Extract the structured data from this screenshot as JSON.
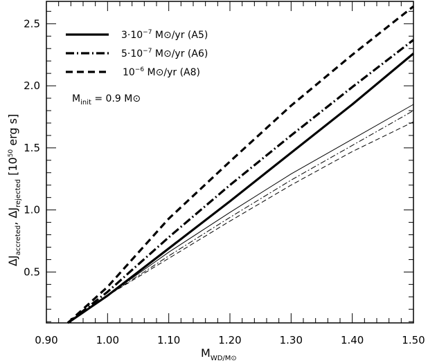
{
  "chart_data": {
    "type": "line",
    "xlabel": "M_WD/M⊙",
    "ylabel": "ΔJ_accreted, ΔJ_rejected [10^50 erg s]",
    "xlim": [
      0.9,
      1.5
    ],
    "ylim": [
      0.09,
      2.68
    ],
    "x_ticks": [
      "0.90",
      "1.00",
      "1.10",
      "1.20",
      "1.30",
      "1.40",
      "1.50"
    ],
    "y_ticks": [
      "0.5",
      "1.0",
      "1.5",
      "2.0",
      "2.5"
    ],
    "annotation": "M_init = 0.9 M⊙",
    "legend": [
      {
        "style": "solid",
        "text": "3·10^-7 M⊙/yr (A5)"
      },
      {
        "style": "dashdot",
        "text": "5·10^-7  M⊙/yr (A6)"
      },
      {
        "style": "dashed",
        "text": "10^-6 M⊙/yr (A8)"
      }
    ],
    "series": [
      {
        "style": "solid",
        "weight": "thick",
        "x": [
          0.935,
          1.0,
          1.1,
          1.2,
          1.3,
          1.4,
          1.5
        ],
        "y": [
          0.09,
          0.31,
          0.69,
          1.07,
          1.46,
          1.85,
          2.26
        ]
      },
      {
        "style": "dashdot",
        "weight": "thick",
        "x": [
          0.935,
          1.0,
          1.1,
          1.2,
          1.3,
          1.4,
          1.5
        ],
        "y": [
          0.09,
          0.34,
          0.78,
          1.2,
          1.6,
          1.99,
          2.37
        ]
      },
      {
        "style": "dashed",
        "weight": "thick",
        "x": [
          0.935,
          1.0,
          1.1,
          1.2,
          1.3,
          1.4,
          1.5
        ],
        "y": [
          0.09,
          0.38,
          0.93,
          1.39,
          1.84,
          2.25,
          2.64
        ]
      },
      {
        "style": "solid",
        "weight": "thin",
        "x": [
          0.935,
          1.0,
          1.1,
          1.2,
          1.3,
          1.4,
          1.5
        ],
        "y": [
          0.09,
          0.31,
          0.66,
          0.98,
          1.29,
          1.57,
          1.85
        ]
      },
      {
        "style": "dashdot",
        "weight": "thin",
        "x": [
          0.935,
          1.0,
          1.1,
          1.2,
          1.3,
          1.4,
          1.5
        ],
        "y": [
          0.09,
          0.31,
          0.63,
          0.94,
          1.24,
          1.52,
          1.8
        ]
      },
      {
        "style": "dashed",
        "weight": "thin",
        "x": [
          0.935,
          1.0,
          1.1,
          1.2,
          1.3,
          1.4,
          1.5
        ],
        "y": [
          0.09,
          0.31,
          0.61,
          0.91,
          1.2,
          1.47,
          1.71
        ]
      }
    ]
  }
}
